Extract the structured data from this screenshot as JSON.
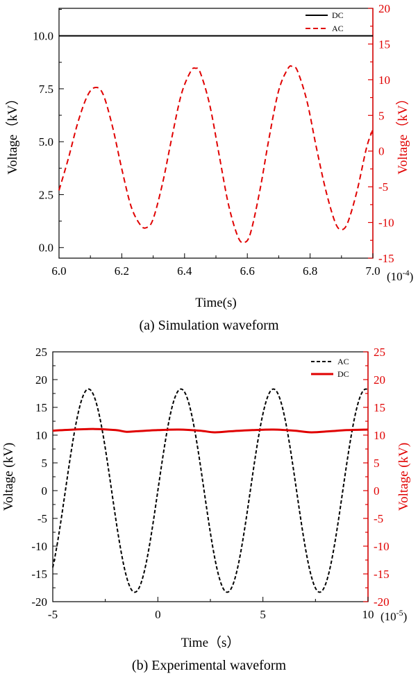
{
  "chart_data": [
    {
      "type": "line",
      "caption": "(a) Simulation waveform",
      "xlabel": "Time(s)",
      "x_multiplier": "(10-4)",
      "x_multiplier_base": "(10",
      "x_multiplier_exp": "-4",
      "x_multiplier_close": ")",
      "xlim": [
        6.0,
        7.0
      ],
      "xticks": [
        "6.0",
        "6.2",
        "6.4",
        "6.6",
        "6.8",
        "7.0"
      ],
      "ylabel_left": "Voltage（kV）",
      "ylim_left": [
        -0.5,
        11.3
      ],
      "yticks_left": [
        "0.0",
        "2.5",
        "5.0",
        "7.5",
        "10.0"
      ],
      "ylabel_right": "Voltage（kV）",
      "ylim_right": [
        -15,
        20
      ],
      "yticks_right": [
        "-15",
        "-10",
        "-5",
        "0",
        "5",
        "10",
        "15",
        "20"
      ],
      "legend_position": "top-right",
      "colors": {
        "DC": "#000000",
        "AC": "#e00000"
      },
      "series": [
        {
          "name": "DC",
          "axis": "left",
          "style": "solid",
          "x": [
            6.0,
            7.0
          ],
          "values": [
            10.0,
            10.0
          ]
        },
        {
          "name": "AC",
          "axis": "right",
          "style": "dashed",
          "x": [
            6.0,
            6.03,
            6.06,
            6.09,
            6.115,
            6.14,
            6.17,
            6.2,
            6.23,
            6.26,
            6.28,
            6.3,
            6.33,
            6.36,
            6.39,
            6.42,
            6.435,
            6.45,
            6.48,
            6.51,
            6.54,
            6.57,
            6.59,
            6.61,
            6.64,
            6.67,
            6.7,
            6.73,
            6.745,
            6.76,
            6.79,
            6.82,
            6.85,
            6.88,
            6.9,
            6.92,
            6.95,
            6.98,
            7.0
          ],
          "values": [
            -5.5,
            -1.0,
            4.0,
            7.7,
            8.9,
            8.0,
            3.5,
            -2.5,
            -7.8,
            -10.4,
            -10.7,
            -9.5,
            -4.5,
            2.0,
            8.0,
            11.2,
            11.6,
            11.0,
            6.5,
            -0.5,
            -7.5,
            -12.0,
            -12.8,
            -11.5,
            -5.5,
            2.0,
            8.5,
            11.6,
            11.8,
            11.2,
            7.0,
            0.5,
            -5.5,
            -10.0,
            -11.0,
            -10.0,
            -5.5,
            0.5,
            3.0
          ]
        }
      ]
    },
    {
      "type": "line",
      "caption": "(b) Experimental waveform",
      "xlabel": "Time（s）",
      "x_multiplier": "(10-5)",
      "x_multiplier_base": "(10",
      "x_multiplier_exp": "-5",
      "x_multiplier_close": ")",
      "xlim": [
        -5,
        10
      ],
      "xticks": [
        "-5",
        "0",
        "5",
        "10"
      ],
      "ylabel_left": "Voltage (kV)",
      "ylim_left": [
        -20,
        25
      ],
      "yticks_left": [
        "-20",
        "-15",
        "-10",
        "-5",
        "0",
        "5",
        "10",
        "15",
        "20",
        "25"
      ],
      "ylabel_right": "Voltage (kV)",
      "ylim_right": [
        -20,
        25
      ],
      "yticks_right": [
        "-20",
        "-15",
        "-10",
        "-5",
        "0",
        "5",
        "10",
        "15",
        "20",
        "25"
      ],
      "legend_position": "top-right",
      "colors": {
        "AC": "#000000",
        "DC": "#e00000"
      },
      "series": [
        {
          "name": "AC",
          "axis": "left",
          "style": "dashed",
          "function": "sine",
          "amplitude": 18.3,
          "offset": 0,
          "period": 4.4,
          "peak_x": -3.3
        },
        {
          "name": "DC",
          "axis": "right",
          "style": "solid",
          "x": [
            -5,
            -4,
            -3,
            -2,
            -1.5,
            -1,
            0,
            1,
            2,
            2.7,
            3.5,
            4.5,
            5.5,
            6.5,
            7.3,
            8.2,
            9,
            10
          ],
          "values": [
            10.8,
            11.0,
            11.1,
            10.9,
            10.6,
            10.7,
            10.9,
            11.0,
            10.8,
            10.5,
            10.7,
            10.9,
            11.0,
            10.8,
            10.5,
            10.7,
            10.9,
            11.0
          ]
        }
      ]
    }
  ]
}
